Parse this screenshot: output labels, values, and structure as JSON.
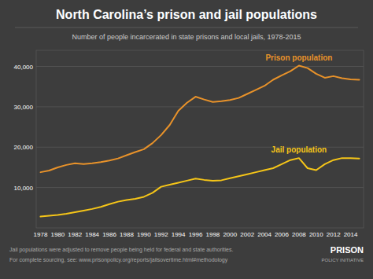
{
  "chart_data": {
    "type": "line",
    "title": "North Carolina’s prison and jail populations",
    "subtitle": "Number of people incarcerated in state prisons and local jails, 1978-2015",
    "annotations": [
      "Jail populations were adjusted to remove people being held for federal and state authorities.",
      "For complete sourcing, see: www.prisonpolicy.org/reports/jailsovertime.html#methodology",
      "PRISON",
      "POLICY INITIATIVE"
    ],
    "x": [
      1978,
      1979,
      1980,
      1981,
      1982,
      1983,
      1984,
      1985,
      1986,
      1987,
      1988,
      1989,
      1990,
      1991,
      1992,
      1993,
      1994,
      1995,
      1996,
      1997,
      1998,
      1999,
      2000,
      2001,
      2002,
      2003,
      2004,
      2005,
      2006,
      2007,
      2008,
      2009,
      2010,
      2011,
      2012,
      2013,
      2014,
      2015
    ],
    "series": [
      {
        "name": "Prison population",
        "color": "#e8922a",
        "values": [
          13800,
          14200,
          15000,
          15600,
          16000,
          15800,
          16000,
          16300,
          16700,
          17200,
          18000,
          18800,
          19500,
          21000,
          23000,
          25500,
          29000,
          31000,
          32500,
          31800,
          31200,
          31400,
          31700,
          32200,
          33200,
          34200,
          35200,
          36700,
          37800,
          38800,
          40200,
          39600,
          38200,
          37200,
          37600,
          37100,
          36800,
          36700
        ]
      },
      {
        "name": "Jail population",
        "color": "#f5c518",
        "values": [
          2800,
          3000,
          3200,
          3500,
          3900,
          4300,
          4700,
          5200,
          5900,
          6500,
          6900,
          7200,
          7700,
          8700,
          10200,
          10700,
          11200,
          11700,
          12200,
          11900,
          11700,
          11800,
          12300,
          12800,
          13300,
          13800,
          14300,
          14800,
          15800,
          16800,
          17300,
          14800,
          14300,
          15800,
          16800,
          17300,
          17300,
          17200
        ]
      }
    ],
    "xlim": [
      1977.5,
      2015.5
    ],
    "ylim": [
      0,
      44000
    ],
    "xticks": [
      1978,
      1980,
      1982,
      1984,
      1986,
      1988,
      1990,
      1992,
      1994,
      1996,
      1998,
      2000,
      2002,
      2004,
      2006,
      2008,
      2010,
      2012,
      2014
    ],
    "yticks": [
      {
        "value": 10000,
        "label": "10,000"
      },
      {
        "value": 20000,
        "label": "20,000"
      },
      {
        "value": 30000,
        "label": "30,000"
      },
      {
        "value": 40000,
        "label": "40,000"
      }
    ],
    "grid": true
  }
}
